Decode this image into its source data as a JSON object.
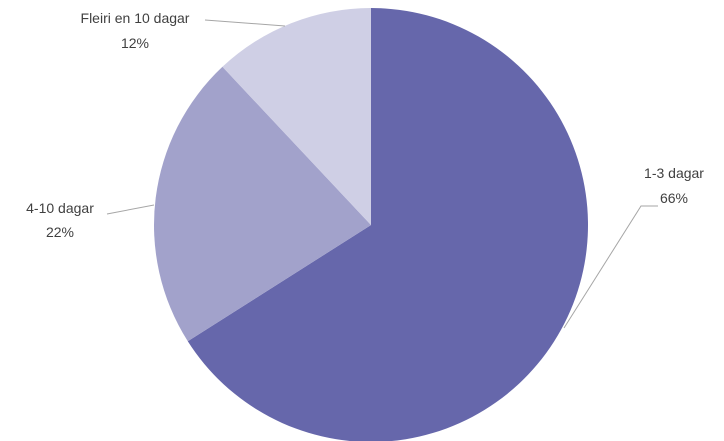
{
  "chart_data": {
    "type": "pie",
    "slices": [
      {
        "name": "1-3 dagar",
        "value": 66,
        "value_label": "66%",
        "color": "#6667ab"
      },
      {
        "name": "4-10 dagar",
        "value": 22,
        "value_label": "22%",
        "color": "#a2a2cb"
      },
      {
        "name": "Fleiri en 10 dagar",
        "value": 12,
        "value_label": "12%",
        "color": "#cfcfe5"
      }
    ],
    "start_angle": "12 o'clock",
    "direction": "clockwise",
    "labels": "outside with leader lines"
  }
}
